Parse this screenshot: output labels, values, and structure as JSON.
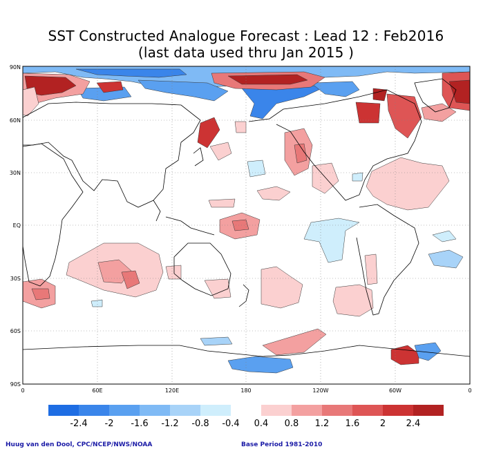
{
  "title": {
    "line1": "SST Constructed Analogue Forecast : Lead 12 : Feb2016",
    "line2": "(last data used thru Jan 2015 )"
  },
  "lat_labels": [
    "90N",
    "60N",
    "30N",
    "EQ",
    "30S",
    "60S",
    "90S"
  ],
  "lon_labels": [
    "0",
    "60E",
    "120E",
    "180",
    "120W",
    "60W",
    "0"
  ],
  "colorbar": {
    "negative_colors": [
      "#1e6de3",
      "#3a85ea",
      "#5aa0f0",
      "#7fbaf5",
      "#a8d3f8",
      "#cfeefc"
    ],
    "positive_colors": [
      "#fbd0d0",
      "#f3a0a0",
      "#e87878",
      "#de5555",
      "#cc3333",
      "#b22222"
    ],
    "neg_labels": [
      "-2.4",
      "-2",
      "-1.6",
      "-1.2",
      "-0.8",
      "-0.4"
    ],
    "pos_labels": [
      "0.4",
      "0.8",
      "1.2",
      "1.6",
      "2",
      "2.4"
    ]
  },
  "footer": {
    "credit": "Huug van den Dool, CPC/NCEP/NWS/NOAA",
    "base_period": "Base Period 1981-2010"
  }
}
